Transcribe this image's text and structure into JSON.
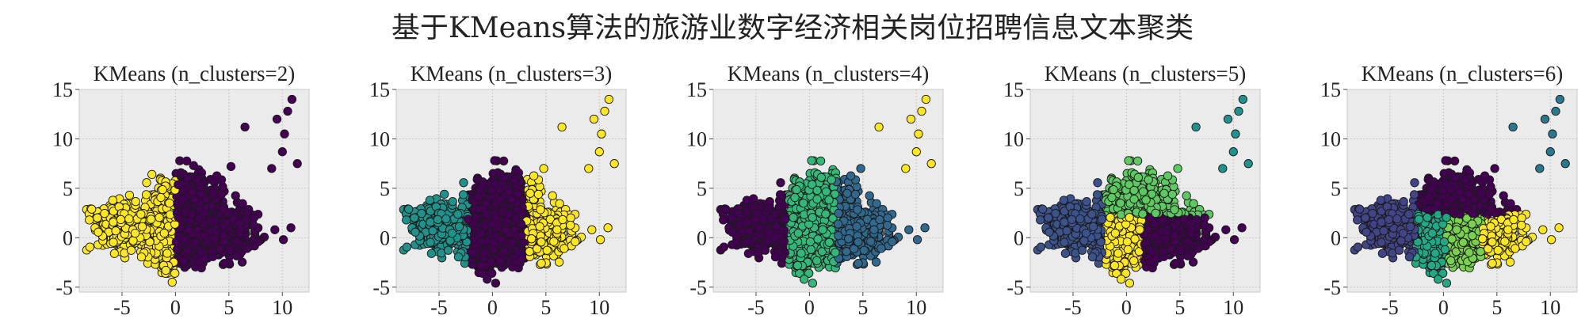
{
  "figure": {
    "title": "基于KMeans算法的旅游业数字经济相关岗位招聘信息文本聚类"
  },
  "colors": {
    "background": "#ebebeb",
    "grid": "#c6c6c6",
    "point_edge": "#1a1a1a",
    "palette_2": [
      "#440154",
      "#fde725"
    ],
    "palette_3": [
      "#440154",
      "#21918c",
      "#fde725"
    ],
    "palette_4": [
      "#440154",
      "#31688e",
      "#35b779",
      "#fde725"
    ],
    "palette_5": [
      "#440154",
      "#3b528b",
      "#21918c",
      "#5ec962",
      "#fde725"
    ],
    "palette_6": [
      "#440154",
      "#414487",
      "#2a788e",
      "#22a884",
      "#7ad151",
      "#fde725"
    ]
  },
  "chart_data": [
    {
      "type": "scatter",
      "title": "KMeans (n_clusters=2)",
      "n_clusters": 2,
      "xlim": [
        -9,
        12.5
      ],
      "ylim": [
        -5.5,
        15
      ],
      "xticks": [
        -5,
        0,
        5,
        10
      ],
      "yticks": [
        -5,
        0,
        5,
        10,
        15
      ],
      "tick_labels_x": [
        "-5",
        "0",
        "5",
        "10"
      ],
      "tick_labels_y": [
        "-5",
        "0",
        "5",
        "10",
        "15"
      ],
      "grid": true,
      "clusters": [
        {
          "color_index": 0,
          "region": "x 0 to 8, y -2 to 8",
          "outliers": [
            [
              6.5,
              11.2
            ],
            [
              9.5,
              12.0
            ],
            [
              10.5,
              12.8
            ],
            [
              10.9,
              14.0
            ],
            [
              10.2,
              10.5
            ],
            [
              11.4,
              7.5
            ],
            [
              9.0,
              7.0
            ],
            [
              10.0,
              8.7
            ],
            [
              9.3,
              0.8
            ],
            [
              10.1,
              -0.2
            ],
            [
              10.8,
              1.0
            ],
            [
              5.2,
              7.2
            ],
            [
              1.7,
              7.3
            ]
          ]
        },
        {
          "color_index": 1,
          "region": "x -8 to 0, y -4 to 5",
          "outliers": [
            [
              -2.2,
              6.4
            ],
            [
              -4.3,
              4.3
            ],
            [
              -0.3,
              -4.5
            ],
            [
              -0.9,
              -3.3
            ]
          ]
        }
      ]
    },
    {
      "type": "scatter",
      "title": "KMeans (n_clusters=3)",
      "n_clusters": 3,
      "xlim": [
        -9,
        12.5
      ],
      "ylim": [
        -5.5,
        15
      ],
      "xticks": [
        -5,
        0,
        5,
        10
      ],
      "yticks": [
        -5,
        0,
        5,
        10,
        15
      ],
      "tick_labels_x": [
        "-5",
        "0",
        "5",
        "10"
      ],
      "tick_labels_y": [
        "-5",
        "0",
        "5",
        "10",
        "15"
      ],
      "grid": true,
      "clusters": [
        {
          "color_index": 0,
          "region": "x -3 to 3, y -4 to 8",
          "outliers": [
            [
              0.2,
              7.8
            ],
            [
              -0.5,
              -4.2
            ],
            [
              0.3,
              -4.6
            ]
          ]
        },
        {
          "color_index": 1,
          "region": "x -8 to -2, y -3 to 4.5",
          "outliers": [
            [
              -4.5,
              4.4
            ]
          ]
        },
        {
          "color_index": 2,
          "region": "x 3 to 8, y -2 to 7; outliers x 9-11.5, y 6-14",
          "outliers": [
            [
              6.5,
              11.2
            ],
            [
              9.5,
              12.0
            ],
            [
              10.5,
              12.8
            ],
            [
              10.9,
              14.0
            ],
            [
              10.2,
              10.5
            ],
            [
              11.4,
              7.5
            ],
            [
              9.0,
              7.0
            ],
            [
              10.0,
              8.7
            ],
            [
              9.3,
              0.8
            ],
            [
              10.1,
              -0.2
            ],
            [
              10.8,
              1.0
            ],
            [
              4.8,
              7.0
            ]
          ]
        }
      ]
    },
    {
      "type": "scatter",
      "title": "KMeans (n_clusters=4)",
      "n_clusters": 4,
      "xlim": [
        -9,
        12.5
      ],
      "ylim": [
        -5.5,
        15
      ],
      "xticks": [
        -5,
        0,
        5,
        10
      ],
      "yticks": [
        -5,
        0,
        5,
        10,
        15
      ],
      "tick_labels_x": [
        "-5",
        "0",
        "5",
        "10"
      ],
      "tick_labels_y": [
        "-5",
        "0",
        "5",
        "10",
        "15"
      ],
      "grid": true,
      "clusters": [
        {
          "color_index": 0,
          "region": "x -8 to -2, y -3 to 4.5",
          "outliers": []
        },
        {
          "color_index": 1,
          "region": "x 2.5 to 8, y -2 to 7",
          "outliers": [
            [
              9.3,
              0.8
            ],
            [
              10.1,
              -0.2
            ],
            [
              10.8,
              1.0
            ],
            [
              4.8,
              7.0
            ]
          ]
        },
        {
          "color_index": 2,
          "region": "x -2 to 2.5, y -4 to 8",
          "outliers": [
            [
              0.2,
              7.8
            ],
            [
              -0.5,
              -4.2
            ],
            [
              0.3,
              -4.6
            ]
          ]
        },
        {
          "color_index": 3,
          "region": "x 9 to 11.5, y 6 to 14",
          "outliers": [
            [
              6.5,
              11.2
            ],
            [
              9.5,
              12.0
            ],
            [
              10.5,
              12.8
            ],
            [
              10.9,
              14.0
            ],
            [
              10.2,
              10.5
            ],
            [
              11.4,
              7.5
            ],
            [
              9.0,
              7.0
            ],
            [
              10.0,
              8.7
            ]
          ]
        }
      ]
    },
    {
      "type": "scatter",
      "title": "KMeans (n_clusters=5)",
      "n_clusters": 5,
      "xlim": [
        -9,
        12.5
      ],
      "ylim": [
        -5.5,
        15
      ],
      "xticks": [
        -5,
        0,
        5,
        10
      ],
      "yticks": [
        -5,
        0,
        5,
        10,
        15
      ],
      "tick_labels_x": [
        "-5",
        "0",
        "5",
        "10"
      ],
      "tick_labels_y": [
        "-5",
        "0",
        "5",
        "10",
        "15"
      ],
      "grid": true,
      "clusters": [
        {
          "color_index": 0,
          "region": "x 1.5 to 8, y -2 to 3",
          "outliers": [
            [
              9.3,
              0.8
            ],
            [
              10.1,
              -0.2
            ],
            [
              10.8,
              1.0
            ]
          ]
        },
        {
          "color_index": 1,
          "region": "x -8 to -2, y -3 to 4.5",
          "outliers": []
        },
        {
          "color_index": 2,
          "region": "x 9 to 11.5, y 6 to 14",
          "outliers": [
            [
              6.5,
              11.2
            ],
            [
              9.5,
              12.0
            ],
            [
              10.5,
              12.8
            ],
            [
              10.9,
              14.0
            ],
            [
              10.2,
              10.5
            ],
            [
              11.4,
              7.5
            ],
            [
              9.0,
              7.0
            ],
            [
              10.0,
              8.7
            ]
          ]
        },
        {
          "color_index": 3,
          "region": "x -2 to 5, y 2 to 8",
          "outliers": [
            [
              0.2,
              7.8
            ],
            [
              4.8,
              7.0
            ]
          ]
        },
        {
          "color_index": 4,
          "region": "x -2.5 to 1.5, y -4 to 2",
          "outliers": [
            [
              -0.5,
              -4.2
            ],
            [
              0.3,
              -4.6
            ]
          ]
        }
      ]
    },
    {
      "type": "scatter",
      "title": "KMeans (n_clusters=6)",
      "n_clusters": 6,
      "xlim": [
        -9,
        12.5
      ],
      "ylim": [
        -5.5,
        15
      ],
      "xticks": [
        -5,
        0,
        5,
        10
      ],
      "yticks": [
        -5,
        0,
        5,
        10,
        15
      ],
      "tick_labels_x": [
        "-5",
        "0",
        "5",
        "10"
      ],
      "tick_labels_y": [
        "-5",
        "0",
        "5",
        "10",
        "15"
      ],
      "grid": true,
      "clusters": [
        {
          "color_index": 0,
          "region": "x -2 to 5, y 2 to 8",
          "outliers": [
            [
              0.2,
              7.8
            ],
            [
              4.8,
              7.0
            ]
          ]
        },
        {
          "color_index": 1,
          "region": "x -8 to -2.5, y -3 to 4.5",
          "outliers": []
        },
        {
          "color_index": 2,
          "region": "x 9 to 11.5, y 6 to 14",
          "outliers": [
            [
              6.5,
              11.2
            ],
            [
              9.5,
              12.0
            ],
            [
              10.5,
              12.8
            ],
            [
              10.9,
              14.0
            ],
            [
              10.2,
              10.5
            ],
            [
              11.4,
              7.5
            ],
            [
              9.0,
              7.0
            ],
            [
              10.0,
              8.7
            ]
          ]
        },
        {
          "color_index": 3,
          "region": "x -3 to 0.5, y -4 to 3",
          "outliers": [
            [
              -0.5,
              -4.2
            ],
            [
              0.3,
              -4.6
            ]
          ]
        },
        {
          "color_index": 4,
          "region": "x 0 to 3.5, y -2 to 2.5",
          "outliers": []
        },
        {
          "color_index": 5,
          "region": "x 3.5 to 8, y -2 to 2; plus x 9-11, y -0.5 to 1.5",
          "outliers": [
            [
              9.3,
              0.8
            ],
            [
              10.1,
              -0.2
            ],
            [
              10.8,
              1.0
            ]
          ]
        }
      ]
    }
  ]
}
